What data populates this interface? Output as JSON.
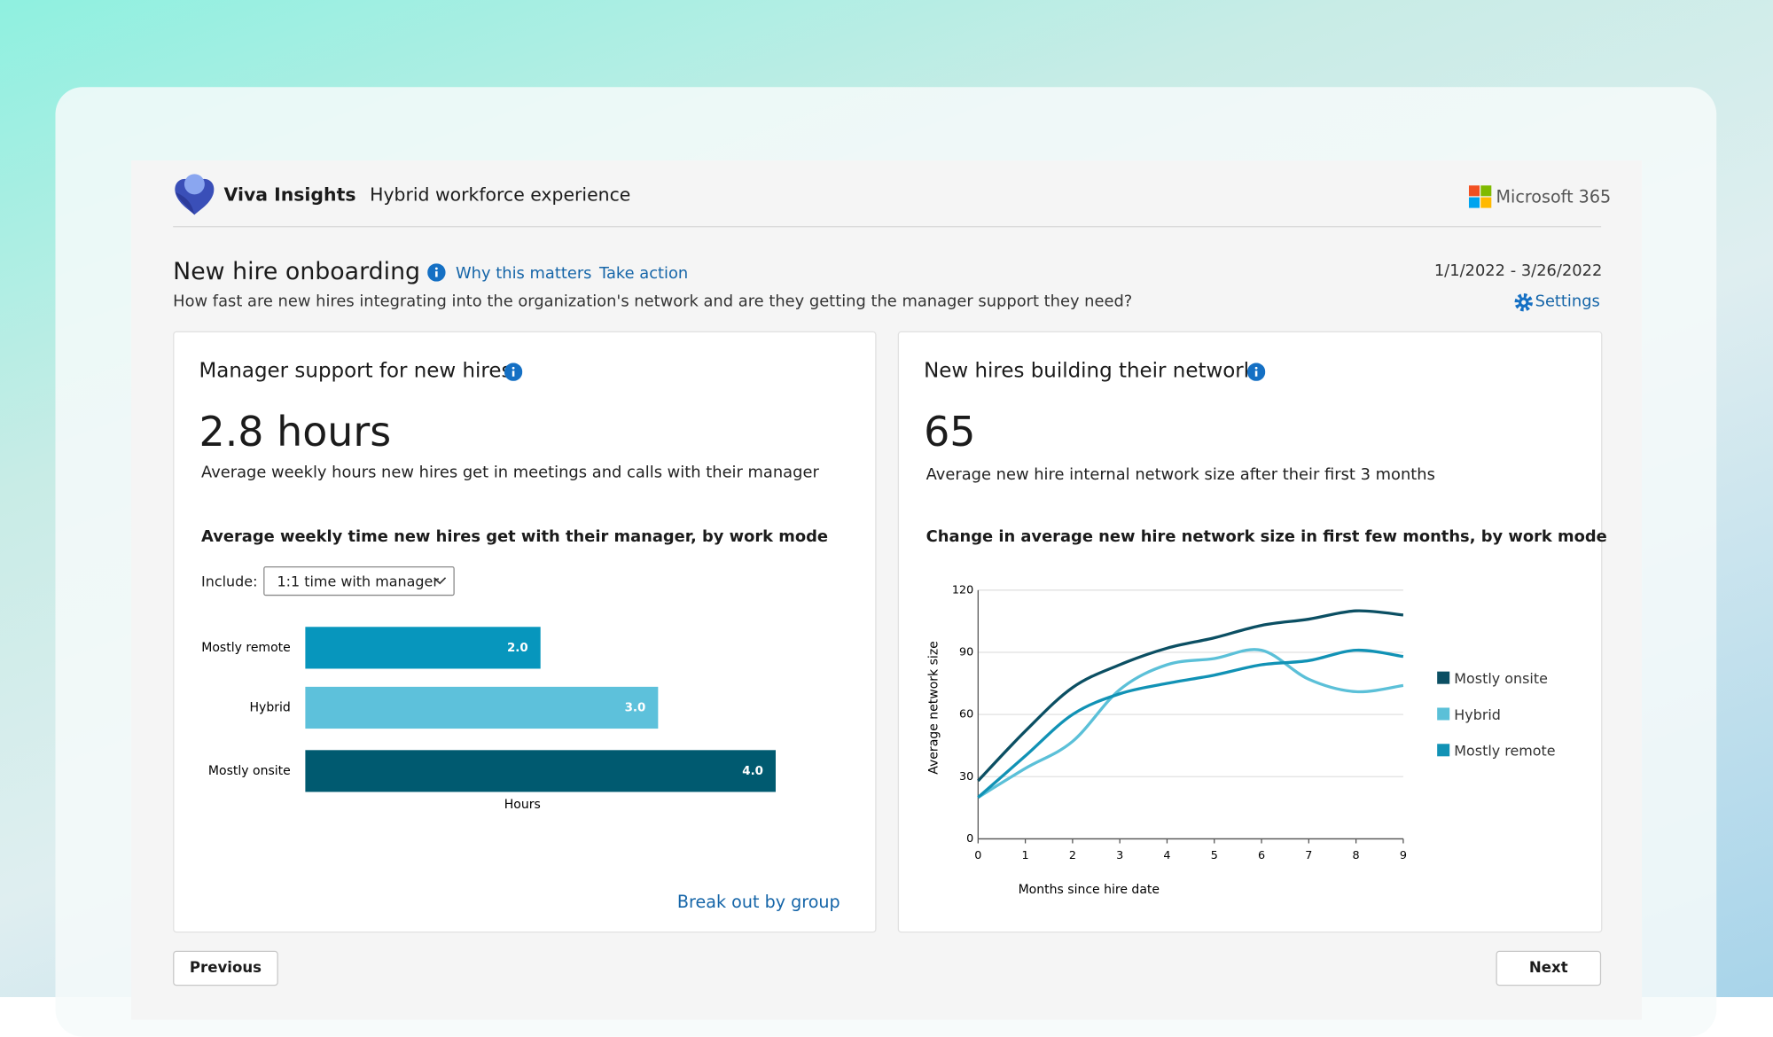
{
  "header": {
    "brand": "Viva Insights",
    "section": "Hybrid workforce experience",
    "vendor": "Microsoft 365"
  },
  "page": {
    "title": "New hire onboarding",
    "links": [
      "Why this matters",
      "Take action"
    ],
    "date_range": "1/1/2022 - 3/26/2022",
    "description": "How fast are new hires integrating into the organization's network and are they getting the manager support they need?",
    "settings": "Settings"
  },
  "cards": [
    {
      "title": "Manager support for new hires",
      "metric": "2.8 hours",
      "metric_description": "Average weekly hours new hires get in meetings and calls with their manager",
      "link": "Break out by group"
    },
    {
      "title": "New hires building their network",
      "metric": 65,
      "metric_description": "Average new hire internal network size after their first 3 months"
    }
  ],
  "chart_data": [
    {
      "type": "bar",
      "orientation": "horizontal",
      "title": "Average weekly time new hires get with their manager, by work mode",
      "filter_label": "Include:",
      "filter_value": "1:1 time with manager",
      "categories": [
        "Mostly remote",
        "Hybrid",
        "Mostly onsite"
      ],
      "values": [
        2.0,
        3.0,
        4.0
      ],
      "value_labels": [
        "2.0",
        "3.0",
        "4.0"
      ],
      "colors": [
        "#0796bd",
        "#5dc1db",
        "#005a70"
      ],
      "xlabel": "Hours",
      "xlim": [
        0,
        4
      ]
    },
    {
      "type": "line",
      "title": "Change in average new hire network size in first few months, by work mode",
      "x": [
        0,
        1,
        2,
        3,
        4,
        5,
        6,
        7,
        8,
        9
      ],
      "series": [
        {
          "name": "Mostly onsite",
          "color": "#0b4f63",
          "values": [
            28,
            52,
            73,
            84,
            92,
            97,
            103,
            106,
            110,
            108
          ]
        },
        {
          "name": "Hybrid",
          "color": "#5bc0d8",
          "values": [
            20,
            34,
            47,
            72,
            84,
            87,
            91,
            77,
            71,
            74
          ]
        },
        {
          "name": "Mostly remote",
          "color": "#1192b5",
          "values": [
            20,
            40,
            60,
            70,
            75,
            79,
            84,
            86,
            91,
            88
          ]
        }
      ],
      "xlim": [
        0,
        9
      ],
      "xticks": [
        0,
        1,
        2,
        3,
        4,
        5,
        6,
        7,
        8,
        9
      ],
      "ylim": [
        0,
        120
      ],
      "yticks": [
        0,
        30,
        60,
        90,
        120
      ],
      "grid": true,
      "xlabel": "Months since hire date",
      "ylabel": "Average network size",
      "legend": "right"
    }
  ],
  "nav": {
    "previous": "Previous",
    "next": "Next"
  }
}
